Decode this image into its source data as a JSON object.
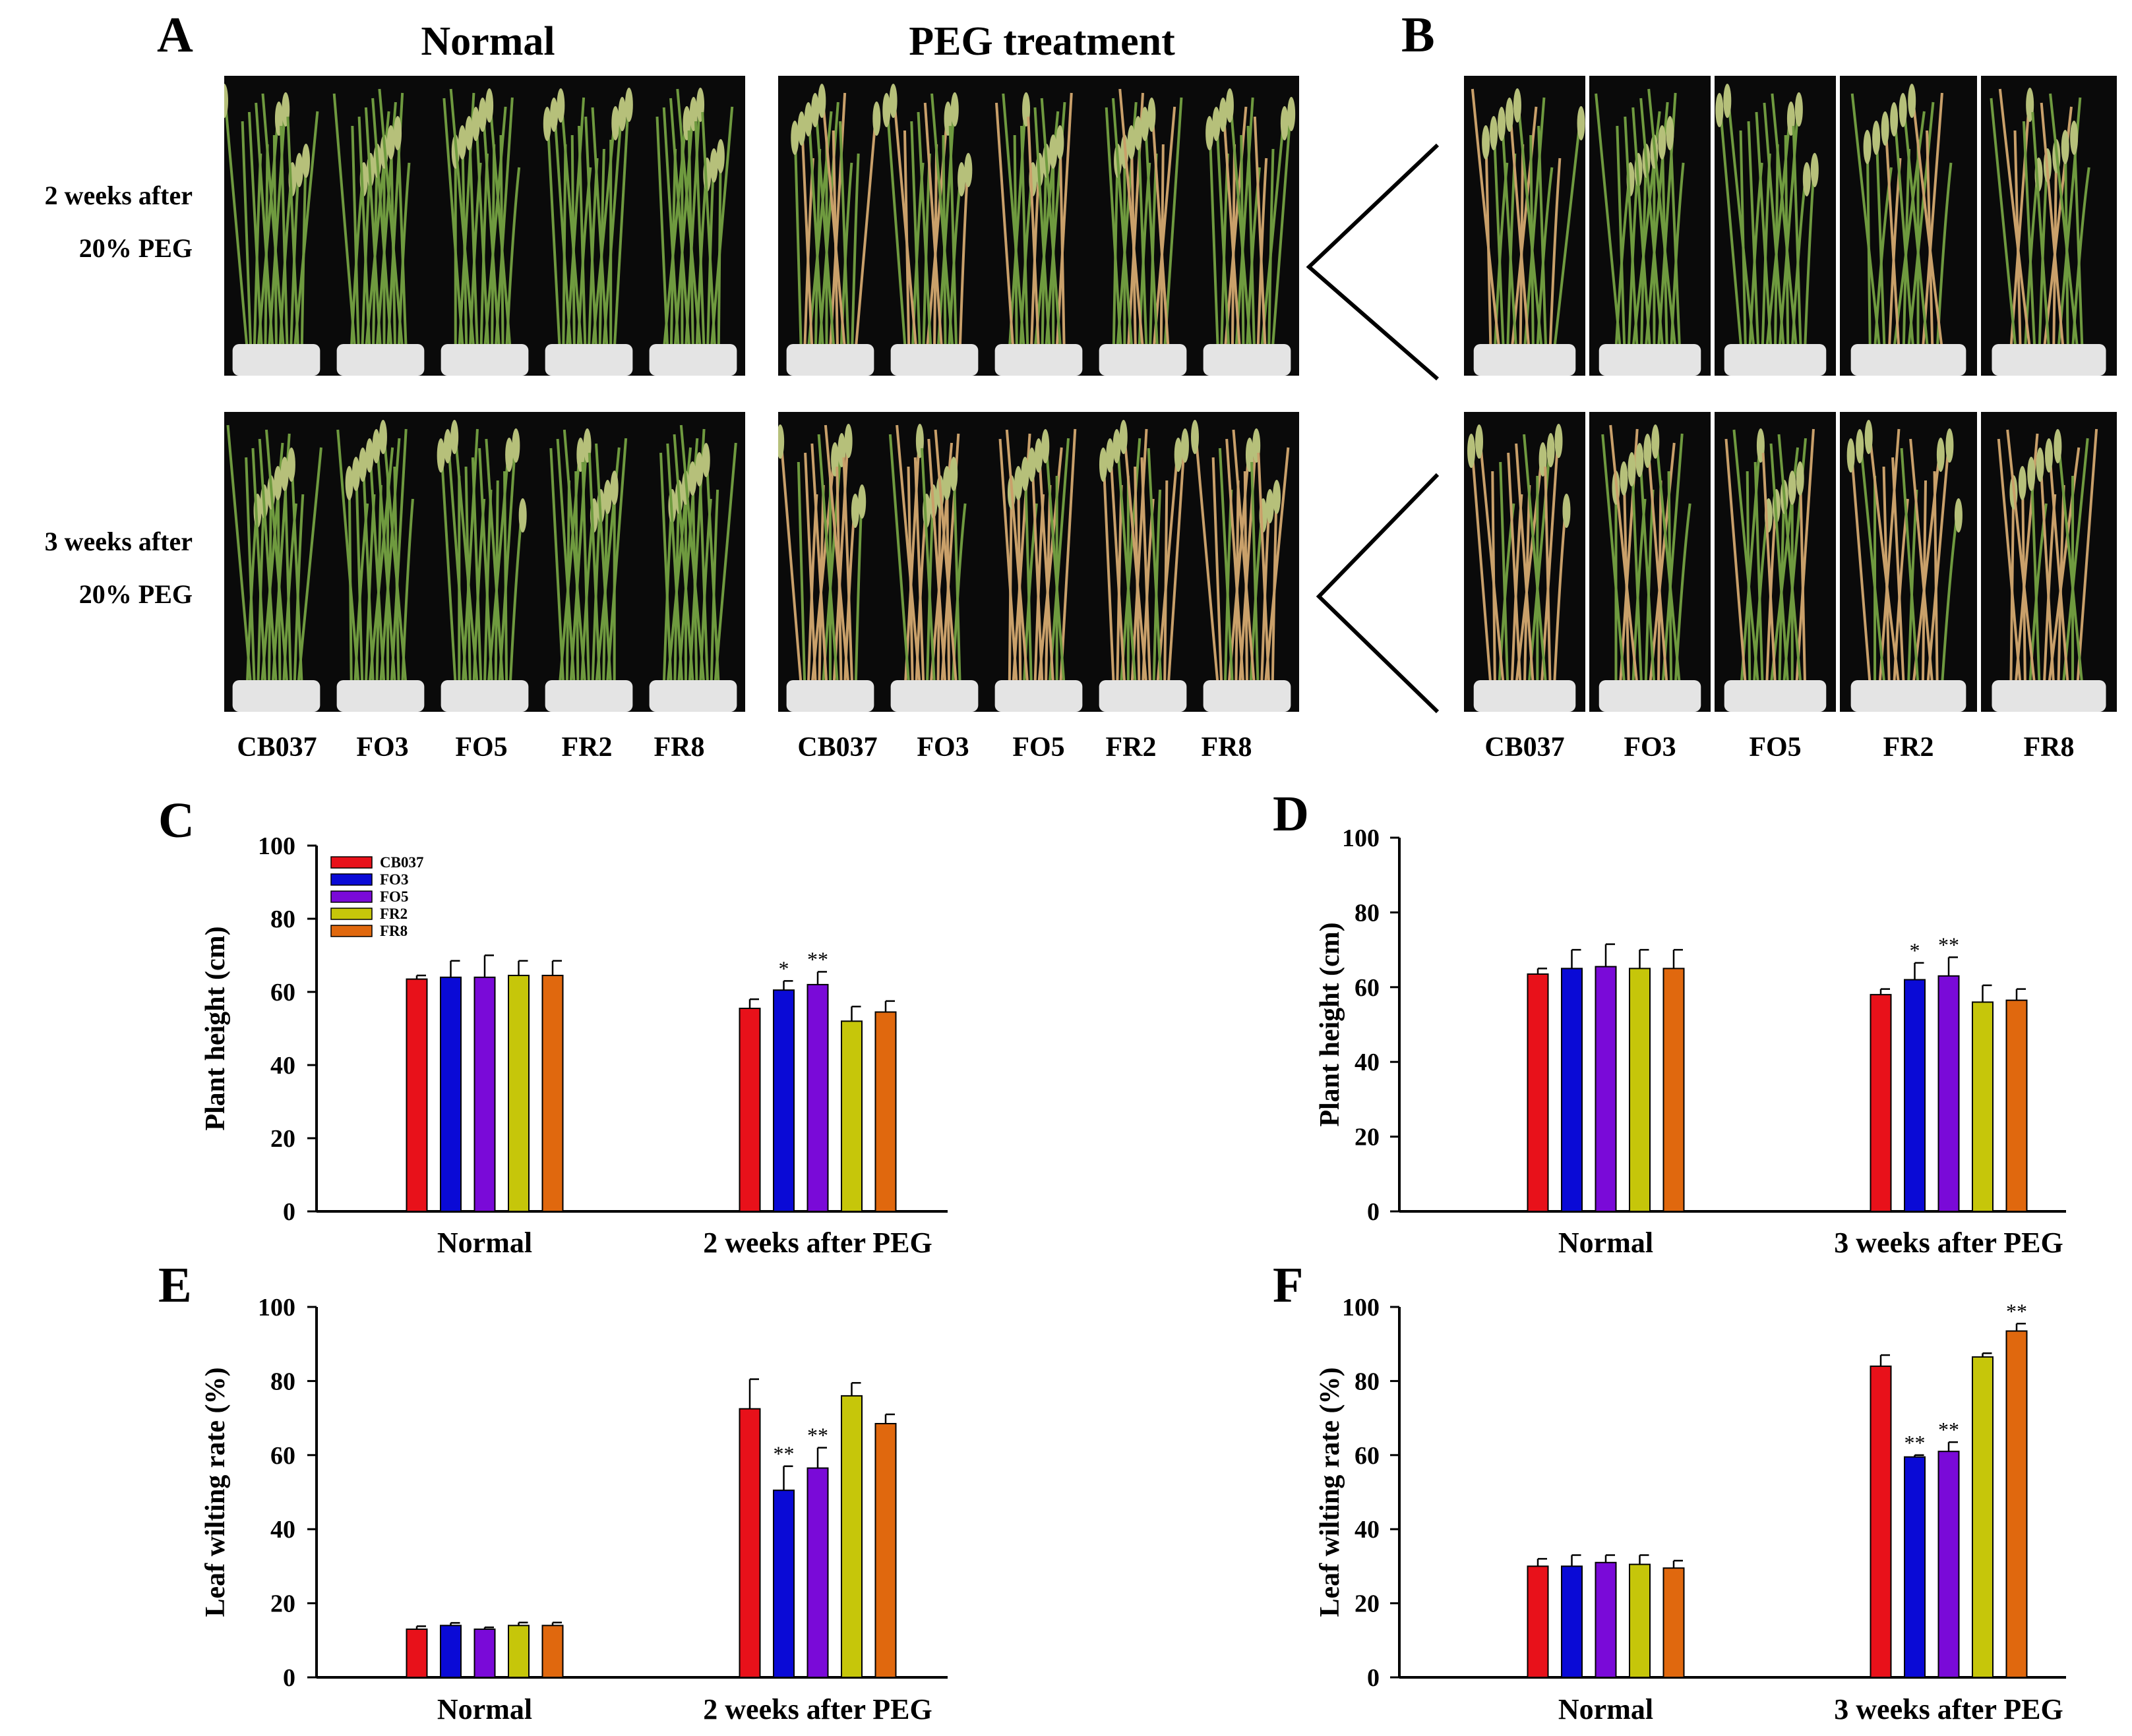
{
  "panels": {
    "A": {
      "letter": "A",
      "column_titles": [
        "Normal",
        "PEG treatment"
      ],
      "row_labels": [
        [
          "2 weeks after",
          "20% PEG"
        ],
        [
          "3 weeks after",
          "20% PEG"
        ]
      ],
      "varieties_left": [
        "CB037",
        "FO3",
        "FO5",
        "FR2",
        "FR8"
      ],
      "varieties_right": [
        "CB037",
        "FO3",
        "FO5",
        "FR2",
        "FR8"
      ]
    },
    "B": {
      "letter": "B",
      "varieties": [
        "CB037",
        "FO3",
        "FO5",
        "FR2",
        "FR8"
      ]
    }
  },
  "colors": {
    "CB037": "#e8111a",
    "FO3": "#0a0ad6",
    "FO5": "#7a0ad8",
    "FR2": "#c6c60a",
    "FR8": "#e0680e",
    "plant_green": "#6f9a3f",
    "plant_wilted": "#c9a06a",
    "pot": "#e4e4e4"
  },
  "chart_data": [
    {
      "panel": "C",
      "type": "bar",
      "ylabel": "Plant height (cm)",
      "ylim": [
        0,
        100
      ],
      "yticks": [
        0,
        20,
        40,
        60,
        80,
        100
      ],
      "categories": [
        "Normal",
        "2 weeks after PEG"
      ],
      "legend": "top-left",
      "series": [
        {
          "name": "CB037",
          "values": [
            63.5,
            55.5
          ],
          "errors": [
            1.0,
            2.5
          ],
          "sig": [
            "",
            ""
          ]
        },
        {
          "name": "FO3",
          "values": [
            64.0,
            60.5
          ],
          "errors": [
            4.5,
            2.5
          ],
          "sig": [
            "",
            "*"
          ]
        },
        {
          "name": "FO5",
          "values": [
            64.0,
            62.0
          ],
          "errors": [
            6.0,
            3.5
          ],
          "sig": [
            "",
            "**"
          ]
        },
        {
          "name": "FR2",
          "values": [
            64.5,
            52.0
          ],
          "errors": [
            4.0,
            4.0
          ],
          "sig": [
            "",
            ""
          ]
        },
        {
          "name": "FR8",
          "values": [
            64.5,
            54.5
          ],
          "errors": [
            4.0,
            3.0
          ],
          "sig": [
            "",
            ""
          ]
        }
      ]
    },
    {
      "panel": "D",
      "type": "bar",
      "ylabel": "Plant height (cm)",
      "ylim": [
        0,
        100
      ],
      "yticks": [
        0,
        20,
        40,
        60,
        80,
        100
      ],
      "categories": [
        "Normal",
        "3 weeks after PEG"
      ],
      "series": [
        {
          "name": "CB037",
          "values": [
            63.5,
            58.0
          ],
          "errors": [
            1.5,
            1.5
          ],
          "sig": [
            "",
            ""
          ]
        },
        {
          "name": "FO3",
          "values": [
            65.0,
            62.0
          ],
          "errors": [
            5.0,
            4.5
          ],
          "sig": [
            "",
            "*"
          ]
        },
        {
          "name": "FO5",
          "values": [
            65.5,
            63.0
          ],
          "errors": [
            6.0,
            5.0
          ],
          "sig": [
            "",
            "**"
          ]
        },
        {
          "name": "FR2",
          "values": [
            65.0,
            56.0
          ],
          "errors": [
            5.0,
            4.5
          ],
          "sig": [
            "",
            ""
          ]
        },
        {
          "name": "FR8",
          "values": [
            65.0,
            56.5
          ],
          "errors": [
            5.0,
            3.0
          ],
          "sig": [
            "",
            ""
          ]
        }
      ]
    },
    {
      "panel": "E",
      "type": "bar",
      "ylabel": "Leaf wilting rate (%)",
      "ylim": [
        0,
        100
      ],
      "yticks": [
        0,
        20,
        40,
        60,
        80,
        100
      ],
      "categories": [
        "Normal",
        "2 weeks after PEG"
      ],
      "series": [
        {
          "name": "CB037",
          "values": [
            13.0,
            72.5
          ],
          "errors": [
            0.8,
            8.0
          ],
          "sig": [
            "",
            ""
          ]
        },
        {
          "name": "FO3",
          "values": [
            14.0,
            50.5
          ],
          "errors": [
            0.7,
            6.5
          ],
          "sig": [
            "",
            "**"
          ]
        },
        {
          "name": "FO5",
          "values": [
            13.0,
            56.5
          ],
          "errors": [
            0.5,
            5.5
          ],
          "sig": [
            "",
            "**"
          ]
        },
        {
          "name": "FR2",
          "values": [
            14.0,
            76.0
          ],
          "errors": [
            0.8,
            3.5
          ],
          "sig": [
            "",
            ""
          ]
        },
        {
          "name": "FR8",
          "values": [
            14.0,
            68.5
          ],
          "errors": [
            0.8,
            2.5
          ],
          "sig": [
            "",
            ""
          ]
        }
      ]
    },
    {
      "panel": "F",
      "type": "bar",
      "ylabel": "Leaf wilting rate (%)",
      "ylim": [
        0,
        100
      ],
      "yticks": [
        0,
        20,
        40,
        60,
        80,
        100
      ],
      "categories": [
        "Normal",
        "3 weeks after PEG"
      ],
      "series": [
        {
          "name": "CB037",
          "values": [
            30.0,
            84.0
          ],
          "errors": [
            2.0,
            3.0
          ],
          "sig": [
            "",
            ""
          ]
        },
        {
          "name": "FO3",
          "values": [
            30.0,
            59.5
          ],
          "errors": [
            3.0,
            0.5
          ],
          "sig": [
            "",
            "**"
          ]
        },
        {
          "name": "FO5",
          "values": [
            31.0,
            61.0
          ],
          "errors": [
            2.0,
            2.5
          ],
          "sig": [
            "",
            "**"
          ]
        },
        {
          "name": "FR2",
          "values": [
            30.5,
            86.5
          ],
          "errors": [
            2.5,
            1.0
          ],
          "sig": [
            "",
            ""
          ]
        },
        {
          "name": "FR8",
          "values": [
            29.5,
            93.5
          ],
          "errors": [
            2.0,
            2.0
          ],
          "sig": [
            "",
            "**"
          ]
        }
      ]
    }
  ]
}
